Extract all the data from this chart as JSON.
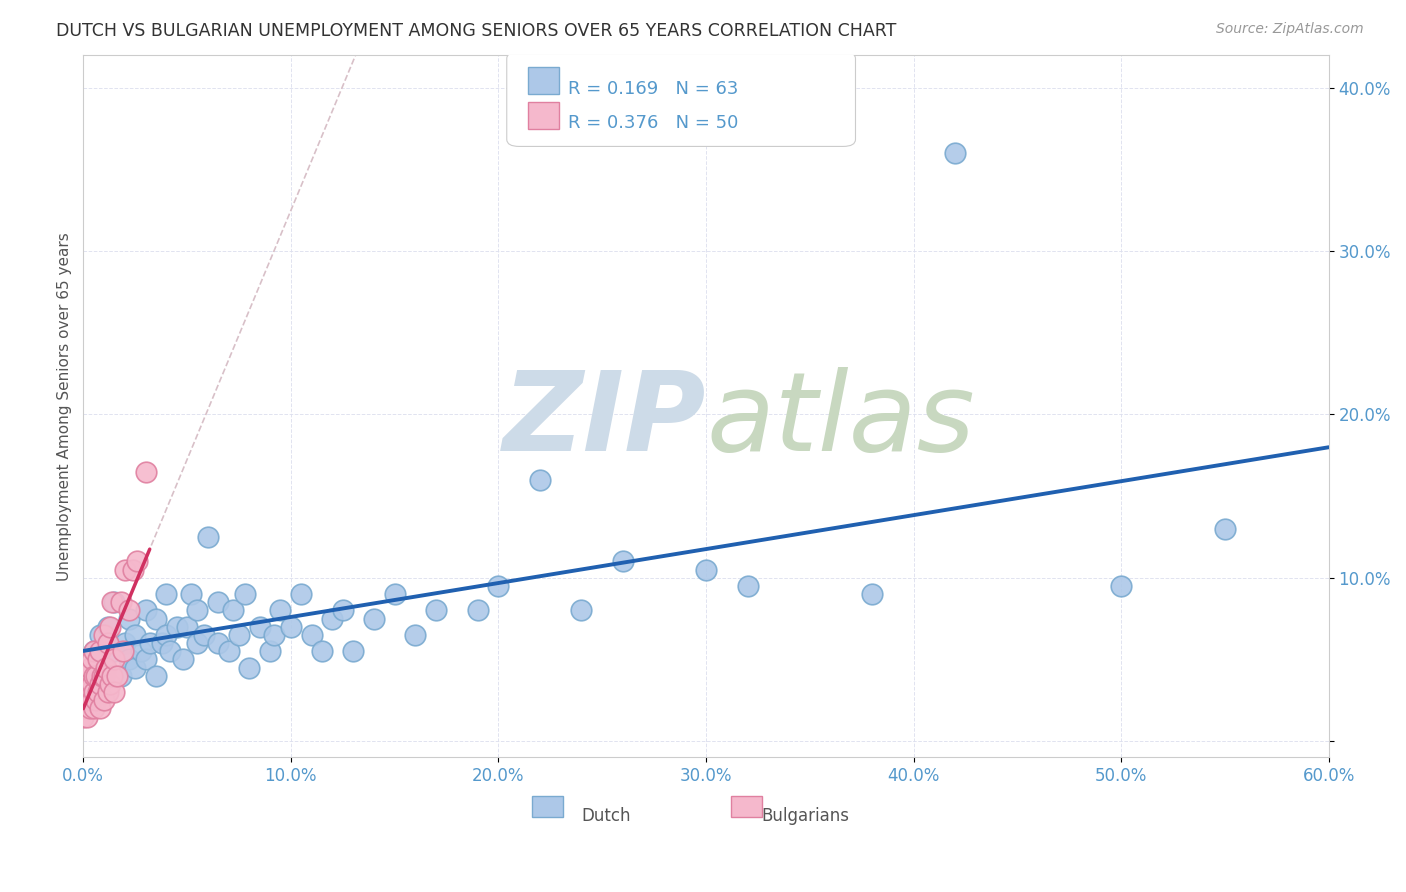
{
  "title": "DUTCH VS BULGARIAN UNEMPLOYMENT AMONG SENIORS OVER 65 YEARS CORRELATION CHART",
  "source": "Source: ZipAtlas.com",
  "ylabel": "Unemployment Among Seniors over 65 years",
  "xlim": [
    0.0,
    0.6
  ],
  "ylim": [
    -0.01,
    0.42
  ],
  "xticks": [
    0.0,
    0.1,
    0.2,
    0.3,
    0.4,
    0.5,
    0.6
  ],
  "yticks": [
    0.0,
    0.1,
    0.2,
    0.3,
    0.4
  ],
  "xtick_labels": [
    "0.0%",
    "10.0%",
    "20.0%",
    "30.0%",
    "40.0%",
    "50.0%",
    "60.0%"
  ],
  "ytick_labels": [
    "",
    "10.0%",
    "20.0%",
    "30.0%",
    "40.0%"
  ],
  "legend_r_dutch": "R = 0.169",
  "legend_n_dutch": "N = 63",
  "legend_r_bulg": "R = 0.376",
  "legend_n_bulg": "N = 50",
  "dutch_color": "#adc8e8",
  "bulg_color": "#f5b8cc",
  "dutch_edge": "#7aaad0",
  "bulg_edge": "#e080a0",
  "trend_dutch_color": "#2060b0",
  "trend_bulg_color": "#d03060",
  "ref_line_color": "#d8c0c8",
  "watermark_color": "#cddbe8",
  "background_color": "#ffffff",
  "tick_color": "#5599cc",
  "title_color": "#333333",
  "source_color": "#999999",
  "ylabel_color": "#555555",
  "grid_color": "#dde0ee",
  "dutch_x": [
    0.005,
    0.008,
    0.01,
    0.012,
    0.015,
    0.015,
    0.018,
    0.02,
    0.022,
    0.022,
    0.025,
    0.025,
    0.028,
    0.03,
    0.03,
    0.032,
    0.035,
    0.035,
    0.038,
    0.04,
    0.04,
    0.042,
    0.045,
    0.048,
    0.05,
    0.052,
    0.055,
    0.055,
    0.058,
    0.06,
    0.065,
    0.065,
    0.07,
    0.072,
    0.075,
    0.078,
    0.08,
    0.085,
    0.09,
    0.092,
    0.095,
    0.1,
    0.105,
    0.11,
    0.115,
    0.12,
    0.125,
    0.13,
    0.14,
    0.15,
    0.16,
    0.17,
    0.19,
    0.2,
    0.22,
    0.24,
    0.26,
    0.3,
    0.32,
    0.38,
    0.42,
    0.5,
    0.55
  ],
  "dutch_y": [
    0.055,
    0.065,
    0.045,
    0.07,
    0.055,
    0.085,
    0.04,
    0.06,
    0.05,
    0.075,
    0.045,
    0.065,
    0.055,
    0.05,
    0.08,
    0.06,
    0.04,
    0.075,
    0.06,
    0.065,
    0.09,
    0.055,
    0.07,
    0.05,
    0.07,
    0.09,
    0.06,
    0.08,
    0.065,
    0.125,
    0.06,
    0.085,
    0.055,
    0.08,
    0.065,
    0.09,
    0.045,
    0.07,
    0.055,
    0.065,
    0.08,
    0.07,
    0.09,
    0.065,
    0.055,
    0.075,
    0.08,
    0.055,
    0.075,
    0.09,
    0.065,
    0.08,
    0.08,
    0.095,
    0.16,
    0.08,
    0.11,
    0.105,
    0.095,
    0.09,
    0.36,
    0.095,
    0.13
  ],
  "bulg_x": [
    0.0,
    0.0,
    0.0,
    0.0,
    0.0,
    0.0,
    0.0,
    0.0,
    0.0,
    0.0,
    0.002,
    0.002,
    0.003,
    0.003,
    0.003,
    0.004,
    0.004,
    0.004,
    0.005,
    0.005,
    0.005,
    0.005,
    0.006,
    0.006,
    0.007,
    0.007,
    0.008,
    0.008,
    0.008,
    0.009,
    0.01,
    0.01,
    0.01,
    0.011,
    0.012,
    0.012,
    0.013,
    0.013,
    0.014,
    0.014,
    0.015,
    0.015,
    0.016,
    0.018,
    0.019,
    0.02,
    0.022,
    0.024,
    0.026,
    0.03
  ],
  "bulg_y": [
    0.015,
    0.02,
    0.025,
    0.025,
    0.03,
    0.03,
    0.035,
    0.035,
    0.04,
    0.04,
    0.015,
    0.025,
    0.02,
    0.03,
    0.045,
    0.025,
    0.035,
    0.05,
    0.02,
    0.03,
    0.04,
    0.055,
    0.025,
    0.04,
    0.03,
    0.05,
    0.02,
    0.035,
    0.055,
    0.04,
    0.025,
    0.04,
    0.065,
    0.045,
    0.03,
    0.06,
    0.035,
    0.07,
    0.04,
    0.085,
    0.03,
    0.05,
    0.04,
    0.085,
    0.055,
    0.105,
    0.08,
    0.105,
    0.11,
    0.165
  ]
}
